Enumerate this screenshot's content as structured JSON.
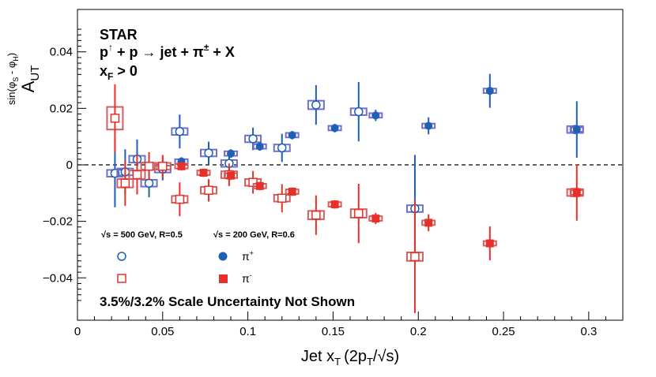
{
  "chart_data": {
    "type": "scatter",
    "title": "",
    "xlabel": "Jet x",
    "xlabel_sub": "T",
    "xlabel_paren": "(2p",
    "xlabel_paren_sub": "T",
    "xlabel_sqrt": "/√s)",
    "ylabel_main": "A",
    "ylabel_sub": "UT",
    "ylabel_sup": "sin(φ",
    "ylabel_sup_s": "S",
    "ylabel_sup_mid": " - φ",
    "ylabel_sup_h": "H",
    "ylabel_sup_end": ")",
    "xlim": [
      0,
      0.32
    ],
    "ylim": [
      -0.055,
      0.055
    ],
    "x_ticks": [
      0,
      0.05,
      0.1,
      0.15,
      0.2,
      0.25,
      0.3
    ],
    "x_tick_labels": [
      "0",
      "0.05",
      "0.1",
      "0.15",
      "0.2",
      "0.25",
      "0.3"
    ],
    "y_ticks": [
      -0.04,
      -0.02,
      0,
      0.02,
      0.04
    ],
    "y_tick_labels": [
      "−0.04",
      "−0.02",
      "0",
      "0.02",
      "0.04"
    ],
    "reference_line_y": 0,
    "annotations": {
      "experiment": "STAR",
      "reaction_p": "p",
      "reaction_arrow": "↑",
      "reaction_rest": " + p  → jet +  π",
      "reaction_pm": "±",
      "reaction_end": " + X",
      "xf_x": "x",
      "xf_sub": "F",
      "xf_rest": " > 0",
      "scale_note": "3.5%/3.2% Scale Uncertainty Not Shown"
    },
    "legend": {
      "placement": "bottom-left",
      "col1_header": "√s = 500 GeV, R=0.5",
      "col2_header": "√s = 200 GeV, R=0.6",
      "pi_plus_label": "π",
      "pi_plus_sup": "+",
      "pi_minus_label": "π",
      "pi_minus_sup": "-"
    },
    "colors": {
      "pi_plus_500": "#1f5fb4",
      "pi_minus_500": "#e8302a",
      "pi_plus_200": "#1f5fb4",
      "pi_minus_200": "#e8302a",
      "sys_box_plus": "#7070cc",
      "sys_box_minus": "#d06060"
    },
    "series": [
      {
        "name": "pi+ √s=500 GeV",
        "marker": "open-circle",
        "points": [
          {
            "x": 0.022,
            "y": -0.003,
            "err": 0.012,
            "sys": 0.0012
          },
          {
            "x": 0.028,
            "y": -0.0025,
            "err": 0.008,
            "sys": 0.0012
          },
          {
            "x": 0.035,
            "y": 0.002,
            "err": 0.007,
            "sys": 0.0012
          },
          {
            "x": 0.042,
            "y": -0.0065,
            "err": 0.005,
            "sys": 0.0012
          },
          {
            "x": 0.05,
            "y": -0.0015,
            "err": 0.004,
            "sys": 0.0012
          },
          {
            "x": 0.06,
            "y": 0.0118,
            "err": 0.006,
            "sys": 0.0012
          },
          {
            "x": 0.077,
            "y": 0.0042,
            "err": 0.004,
            "sys": 0.0012
          },
          {
            "x": 0.089,
            "y": 0.0005,
            "err": 0.004,
            "sys": 0.0012
          },
          {
            "x": 0.103,
            "y": 0.0092,
            "err": 0.004,
            "sys": 0.0012
          },
          {
            "x": 0.12,
            "y": 0.006,
            "err": 0.005,
            "sys": 0.0012
          },
          {
            "x": 0.14,
            "y": 0.0212,
            "err": 0.007,
            "sys": 0.0015
          },
          {
            "x": 0.165,
            "y": 0.0188,
            "err": 0.0105,
            "sys": 0.0012
          },
          {
            "x": 0.198,
            "y": -0.0155,
            "err": 0.019,
            "sys": 0.0012
          },
          {
            "x": 0.292,
            "y": 0.0125,
            "err": 0.0008,
            "sys": 0.0012
          }
        ]
      },
      {
        "name": "pi- √s=500 GeV",
        "marker": "open-square",
        "points": [
          {
            "x": 0.022,
            "y": 0.0165,
            "err": 0.012,
            "sys": 0.004
          },
          {
            "x": 0.028,
            "y": -0.0065,
            "err": 0.008,
            "sys": 0.0015
          },
          {
            "x": 0.035,
            "y": -0.0035,
            "err": 0.007,
            "sys": 0.0015
          },
          {
            "x": 0.042,
            "y": -0.0005,
            "err": 0.005,
            "sys": 0.0012
          },
          {
            "x": 0.05,
            "y": -0.0005,
            "err": 0.004,
            "sys": 0.0012
          },
          {
            "x": 0.06,
            "y": -0.0122,
            "err": 0.006,
            "sys": 0.0012
          },
          {
            "x": 0.077,
            "y": -0.009,
            "err": 0.004,
            "sys": 0.0012
          },
          {
            "x": 0.089,
            "y": -0.0035,
            "err": 0.004,
            "sys": 0.0012
          },
          {
            "x": 0.103,
            "y": -0.0062,
            "err": 0.004,
            "sys": 0.0012
          },
          {
            "x": 0.12,
            "y": -0.0118,
            "err": 0.005,
            "sys": 0.0012
          },
          {
            "x": 0.14,
            "y": -0.0178,
            "err": 0.007,
            "sys": 0.0015
          },
          {
            "x": 0.165,
            "y": -0.0172,
            "err": 0.0105,
            "sys": 0.0015
          },
          {
            "x": 0.198,
            "y": -0.0325,
            "err": 0.02,
            "sys": 0.0015
          },
          {
            "x": 0.292,
            "y": -0.0098,
            "err": 0.0008,
            "sys": 0.0012
          }
        ]
      },
      {
        "name": "pi+ √s=200 GeV",
        "marker": "filled-circle",
        "points": [
          {
            "x": 0.061,
            "y": 0.0012,
            "err": 0.0015,
            "sys": 0.0008
          },
          {
            "x": 0.09,
            "y": 0.004,
            "err": 0.0015,
            "sys": 0.0008
          },
          {
            "x": 0.107,
            "y": 0.0065,
            "err": 0.0015,
            "sys": 0.0008
          },
          {
            "x": 0.126,
            "y": 0.0105,
            "err": 0.0015,
            "sys": 0.0008
          },
          {
            "x": 0.151,
            "y": 0.013,
            "err": 0.0015,
            "sys": 0.0008
          },
          {
            "x": 0.175,
            "y": 0.0175,
            "err": 0.002,
            "sys": 0.0008
          },
          {
            "x": 0.206,
            "y": 0.0138,
            "err": 0.003,
            "sys": 0.0008
          },
          {
            "x": 0.242,
            "y": 0.0262,
            "err": 0.006,
            "sys": 0.0008
          },
          {
            "x": 0.293,
            "y": 0.0125,
            "err": 0.01,
            "sys": 0.0008
          }
        ]
      },
      {
        "name": "pi- √s=200 GeV",
        "marker": "filled-square",
        "points": [
          {
            "x": 0.061,
            "y": -0.0005,
            "err": 0.0015,
            "sys": 0.0008
          },
          {
            "x": 0.074,
            "y": -0.0028,
            "err": 0.0015,
            "sys": 0.0008
          },
          {
            "x": 0.09,
            "y": -0.0038,
            "err": 0.0015,
            "sys": 0.0008
          },
          {
            "x": 0.107,
            "y": -0.0075,
            "err": 0.0015,
            "sys": 0.0008
          },
          {
            "x": 0.126,
            "y": -0.0095,
            "err": 0.0015,
            "sys": 0.0008
          },
          {
            "x": 0.151,
            "y": -0.014,
            "err": 0.0015,
            "sys": 0.0008
          },
          {
            "x": 0.175,
            "y": -0.019,
            "err": 0.002,
            "sys": 0.0008
          },
          {
            "x": 0.206,
            "y": -0.0205,
            "err": 0.003,
            "sys": 0.0008
          },
          {
            "x": 0.242,
            "y": -0.0278,
            "err": 0.006,
            "sys": 0.0008
          },
          {
            "x": 0.293,
            "y": -0.0098,
            "err": 0.01,
            "sys": 0.0008
          }
        ]
      }
    ]
  }
}
